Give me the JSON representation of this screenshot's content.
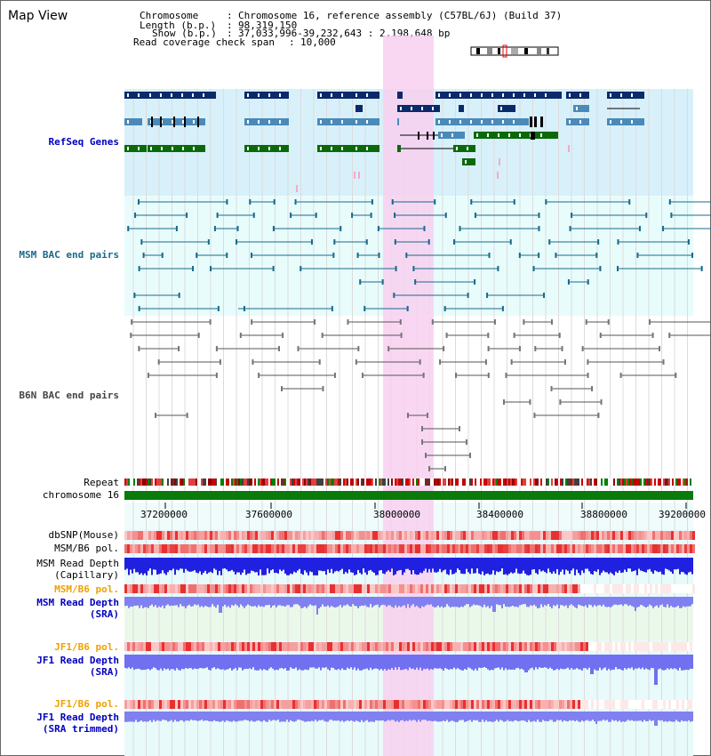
{
  "title": "Map View",
  "header": {
    "chromosome_key": "Chromosome",
    "chromosome_val": "Chromosome 16, reference assembly (C57BL/6J) (Build 37)",
    "length_key": "Length (b.p.)",
    "length_val": "98,319,150",
    "show_key": "Show (b.p.)",
    "show_val": "37,033,996-39,232,643 : 2,198,648 bp",
    "coverage_key": "Read coverage check span",
    "coverage_val": "10,000"
  },
  "tracks": {
    "refseq": "RefSeq Genes",
    "msm_bac": "MSM BAC end pairs",
    "b6n_bac": "B6N BAC end pairs",
    "repeat": "Repeat",
    "chromosome": "chromosome 16",
    "dbsnp": "dbSNP(Mouse)",
    "msm_pol1": "MSM/B6 pol.",
    "msm_depth_cap_1": "MSM Read Depth",
    "msm_depth_cap_2": "(Capillary)",
    "msm_pol2": "MSM/B6 pol.",
    "msm_sra_1": "MSM Read Depth",
    "msm_sra_2": "(SRA)",
    "jf1_pol1": "JF1/B6 pol.",
    "jf1_sra_1": "JF1 Read Depth",
    "jf1_sra_2": "(SRA)",
    "jf1_pol2": "JF1/B6 pol.",
    "jf1_trim_1": "JF1 Read Depth",
    "jf1_trim_2": "(SRA trimmed)"
  },
  "axis_ticks": [
    "37200000",
    "37600000",
    "38000000",
    "38400000",
    "38800000",
    "39200000"
  ],
  "colors": {
    "refseq_bg": "#d8f0fa",
    "bac_bg": "#e8fcfc",
    "highlight": "#f8d0f0",
    "gene_dark": "#0a2a6a",
    "gene_mid": "#4a8ab8",
    "gene_green": "#0a6a0a",
    "chrom_green": "#0a7a0a"
  }
}
